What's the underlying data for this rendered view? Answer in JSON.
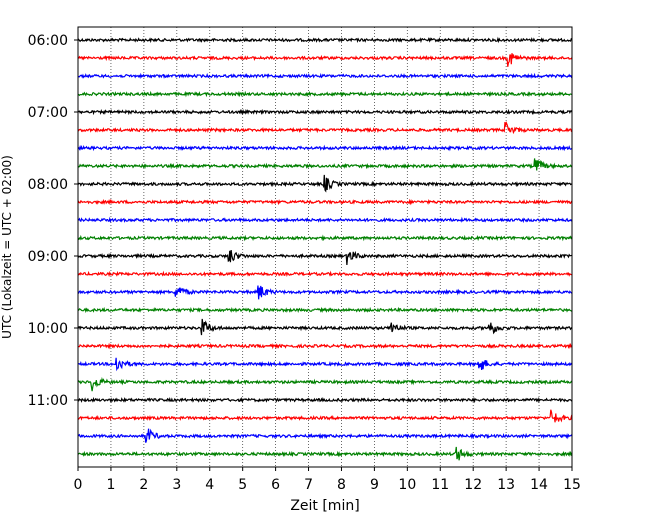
{
  "chart_data": {
    "type": "line",
    "title": "",
    "xlabel": "Zeit  [min]",
    "ylabel": "UTC (Lokalzeit = UTC + 02:00)",
    "xlim": [
      0,
      15
    ],
    "x_ticks": [
      "0",
      "1",
      "2",
      "3",
      "4",
      "5",
      "6",
      "7",
      "8",
      "9",
      "10",
      "11",
      "12",
      "13",
      "14",
      "15"
    ],
    "y_tick_labels": [
      "06:00",
      "07:00",
      "08:00",
      "09:00",
      "10:00",
      "11:00"
    ],
    "grid": "vertical dotted",
    "color_cycle": [
      "#000000",
      "#ff0000",
      "#0000ff",
      "#008000"
    ],
    "traces": [
      {
        "start": "06:00",
        "events": []
      },
      {
        "start": "06:15",
        "events": [
          13.1
        ]
      },
      {
        "start": "06:30",
        "events": []
      },
      {
        "start": "06:45",
        "events": []
      },
      {
        "start": "07:00",
        "events": []
      },
      {
        "start": "07:15",
        "events": [
          13.0
        ]
      },
      {
        "start": "07:30",
        "events": []
      },
      {
        "start": "07:45",
        "events": [
          13.9
        ]
      },
      {
        "start": "08:00",
        "events": [
          7.5
        ]
      },
      {
        "start": "08:15",
        "events": []
      },
      {
        "start": "08:30",
        "events": []
      },
      {
        "start": "08:45",
        "events": []
      },
      {
        "start": "09:00",
        "events": [
          4.6,
          8.2
        ]
      },
      {
        "start": "09:15",
        "events": []
      },
      {
        "start": "09:30",
        "events": [
          3.0,
          5.5
        ]
      },
      {
        "start": "09:45",
        "events": []
      },
      {
        "start": "10:00",
        "events": [
          3.8,
          9.5,
          12.5
        ]
      },
      {
        "start": "10:15",
        "events": []
      },
      {
        "start": "10:30",
        "events": [
          1.2,
          12.2
        ]
      },
      {
        "start": "10:45",
        "events": [
          0.45
        ]
      },
      {
        "start": "11:00",
        "events": []
      },
      {
        "start": "11:15",
        "events": [
          14.4
        ]
      },
      {
        "start": "11:30",
        "events": [
          2.1
        ]
      },
      {
        "start": "11:45",
        "events": [
          11.5
        ]
      }
    ]
  }
}
